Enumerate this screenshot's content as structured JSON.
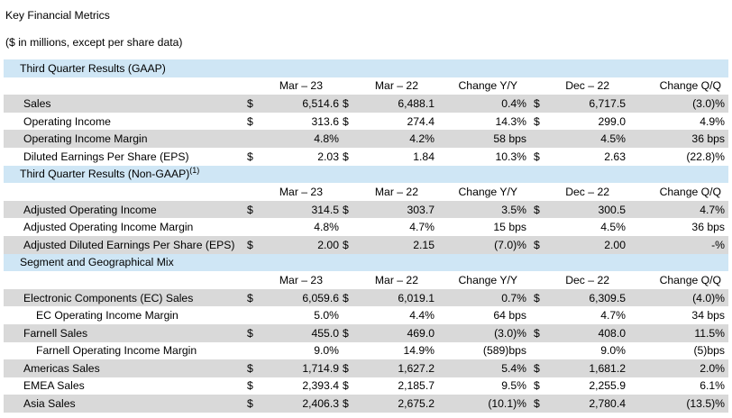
{
  "title": "Key Financial Metrics",
  "subtitle": "($ in millions, except per share data)",
  "currency_symbol": "$",
  "columns": [
    "Mar – 23",
    "Mar – 22",
    "Change Y/Y",
    "Dec – 22",
    "Change Q/Q"
  ],
  "sections": [
    {
      "title": "Third Quarter Results (GAAP)",
      "title_sup": "",
      "rows": [
        {
          "label": "Sales",
          "shade": true,
          "indent": false,
          "cur1": "$",
          "mar23": "6,514.6",
          "cur2": "$",
          "mar22": "6,488.1",
          "yy": "0.4%",
          "cur3": "$",
          "dec22": "6,717.5",
          "qq": "(3.0)%"
        },
        {
          "label": "Operating Income",
          "shade": false,
          "indent": false,
          "cur1": "$",
          "mar23": "313.6",
          "cur2": "$",
          "mar22": "274.4",
          "yy": "14.3%",
          "cur3": "$",
          "dec22": "299.0",
          "qq": "4.9%"
        },
        {
          "label": "Operating Income Margin",
          "shade": true,
          "indent": false,
          "cur1": "",
          "mar23": "4.8%",
          "cur2": "",
          "mar22": "4.2%",
          "yy": "58 bps",
          "cur3": "",
          "dec22": "4.5%",
          "qq": "36 bps"
        },
        {
          "label": "Diluted Earnings Per Share (EPS)",
          "shade": false,
          "indent": false,
          "cur1": "$",
          "mar23": "2.03",
          "cur2": "$",
          "mar22": "1.84",
          "yy": "10.3%",
          "cur3": "$",
          "dec22": "2.63",
          "qq": "(22.8)%"
        }
      ]
    },
    {
      "title": "Third Quarter Results (Non-GAAP)",
      "title_sup": "(1)",
      "rows": [
        {
          "label": "Adjusted Operating Income",
          "shade": true,
          "indent": false,
          "cur1": "$",
          "mar23": "314.5",
          "cur2": "$",
          "mar22": "303.7",
          "yy": "3.5%",
          "cur3": "$",
          "dec22": "300.5",
          "qq": "4.7%"
        },
        {
          "label": "Adjusted Operating Income Margin",
          "shade": false,
          "indent": false,
          "cur1": "",
          "mar23": "4.8%",
          "cur2": "",
          "mar22": "4.7%",
          "yy": "15 bps",
          "cur3": "",
          "dec22": "4.5%",
          "qq": "36 bps"
        },
        {
          "label": "Adjusted Diluted Earnings Per Share (EPS)",
          "shade": true,
          "indent": false,
          "cur1": "$",
          "mar23": "2.00",
          "cur2": "$",
          "mar22": "2.15",
          "yy": "(7.0)%",
          "cur3": "$",
          "dec22": "2.00",
          "qq": "-%"
        }
      ]
    },
    {
      "title": "Segment and Geographical Mix",
      "title_sup": "",
      "rows": [
        {
          "label": "Electronic Components (EC) Sales",
          "shade": true,
          "indent": false,
          "cur1": "$",
          "mar23": "6,059.6",
          "cur2": "$",
          "mar22": "6,019.1",
          "yy": "0.7%",
          "cur3": "$",
          "dec22": "6,309.5",
          "qq": "(4.0)%"
        },
        {
          "label": "EC Operating Income Margin",
          "shade": false,
          "indent": true,
          "cur1": "",
          "mar23": "5.0%",
          "cur2": "",
          "mar22": "4.4%",
          "yy": "64 bps",
          "cur3": "",
          "dec22": "4.7%",
          "qq": "34 bps"
        },
        {
          "label": "Farnell Sales",
          "shade": true,
          "indent": false,
          "cur1": "$",
          "mar23": "455.0",
          "cur2": "$",
          "mar22": "469.0",
          "yy": "(3.0)%",
          "cur3": "$",
          "dec22": "408.0",
          "qq": "11.5%"
        },
        {
          "label": "Farnell Operating Income Margin",
          "shade": false,
          "indent": true,
          "cur1": "",
          "mar23": "9.0%",
          "cur2": "",
          "mar22": "14.9%",
          "yy": "(589)bps",
          "cur3": "",
          "dec22": "9.0%",
          "qq": "(5)bps"
        },
        {
          "label": "Americas Sales",
          "shade": true,
          "indent": false,
          "cur1": "$",
          "mar23": "1,714.9",
          "cur2": "$",
          "mar22": "1,627.2",
          "yy": "5.4%",
          "cur3": "$",
          "dec22": "1,681.2",
          "qq": "2.0%"
        },
        {
          "label": "EMEA Sales",
          "shade": false,
          "indent": false,
          "cur1": "$",
          "mar23": "2,393.4",
          "cur2": "$",
          "mar22": "2,185.7",
          "yy": "9.5%",
          "cur3": "$",
          "dec22": "2,255.9",
          "qq": "6.1%"
        },
        {
          "label": "Asia Sales",
          "shade": true,
          "indent": false,
          "cur1": "$",
          "mar23": "2,406.3",
          "cur2": "$",
          "mar22": "2,675.2",
          "yy": "(10.1)%",
          "cur3": "$",
          "dec22": "2,780.4",
          "qq": "(13.5)%"
        }
      ]
    }
  ]
}
